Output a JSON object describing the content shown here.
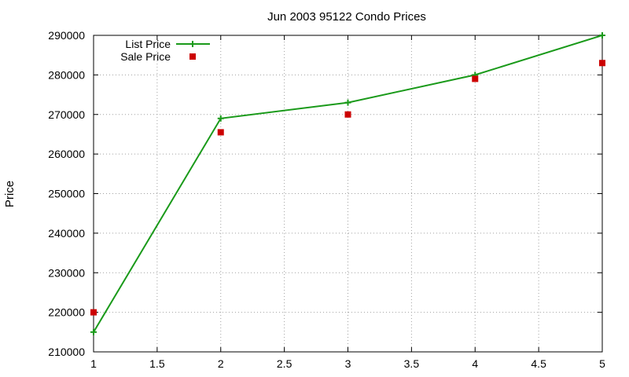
{
  "chart_data": {
    "type": "line",
    "title": "Jun 2003 95122 Condo Prices",
    "xlabel": "",
    "ylabel": "Price",
    "xlim": [
      1,
      5
    ],
    "ylim": [
      210000,
      290000
    ],
    "x_ticks": [
      "1",
      "1.5",
      "2",
      "2.5",
      "3",
      "3.5",
      "4",
      "4.5",
      "5"
    ],
    "y_ticks": [
      "210000",
      "220000",
      "230000",
      "240000",
      "250000",
      "260000",
      "270000",
      "280000",
      "290000"
    ],
    "grid": true,
    "legend_position": "top-left",
    "series": [
      {
        "name": "List Price",
        "style": "linespoints",
        "marker": "plus",
        "color": "#1a9a1a",
        "x": [
          1,
          2,
          3,
          4,
          5
        ],
        "values": [
          215000,
          269000,
          273000,
          280000,
          290000
        ]
      },
      {
        "name": "Sale Price",
        "style": "points",
        "marker": "square",
        "color": "#cc0000",
        "x": [
          1,
          2,
          3,
          4,
          5
        ],
        "values": [
          220000,
          265500,
          270000,
          279000,
          283000
        ]
      }
    ]
  }
}
